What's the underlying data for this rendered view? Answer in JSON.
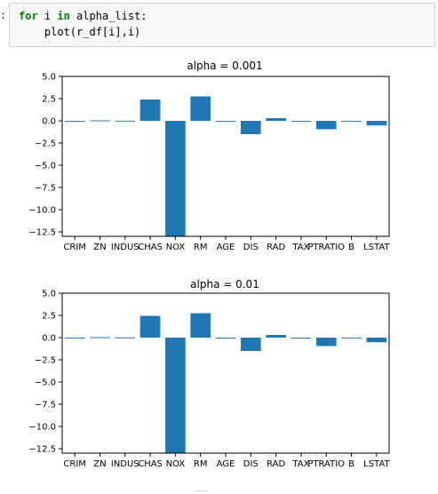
{
  "notebook": {
    "prompt": ":",
    "code": {
      "line1_kw_for": "for",
      "line1_var": " i ",
      "line1_kw_in": "in",
      "line1_rest": " alpha_list:",
      "line2": "    plot(r_df[i],i)"
    }
  },
  "chart_data": [
    {
      "type": "bar",
      "title": "alpha = 0.001",
      "categories": [
        "CRIM",
        "ZN",
        "INDUS",
        "CHAS",
        "NOX",
        "RM",
        "AGE",
        "DIS",
        "RAD",
        "TAX",
        "PTRATIO",
        "B",
        "LSTAT"
      ],
      "values": [
        -0.1,
        0.05,
        0.02,
        2.4,
        -13.5,
        2.75,
        0.0,
        -1.5,
        0.3,
        -0.01,
        -0.95,
        0.01,
        -0.52
      ],
      "xlabel": "",
      "ylabel": "",
      "ylim": [
        -13,
        5
      ],
      "yticks": [
        "5.0",
        "2.5",
        "0.0",
        "−2.5",
        "−5.0",
        "−7.5",
        "−10.0",
        "−12.5"
      ],
      "ytick_values": [
        5,
        2.5,
        0,
        -2.5,
        -5,
        -7.5,
        -10,
        -12.5
      ],
      "bar_color": "#1f77b4",
      "grid": false
    },
    {
      "type": "bar",
      "title": "alpha = 0.01",
      "categories": [
        "CRIM",
        "ZN",
        "INDUS",
        "CHAS",
        "NOX",
        "RM",
        "AGE",
        "DIS",
        "RAD",
        "TAX",
        "PTRATIO",
        "B",
        "LSTAT"
      ],
      "values": [
        -0.1,
        0.05,
        0.02,
        2.45,
        -13.2,
        2.75,
        0.0,
        -1.5,
        0.3,
        -0.01,
        -0.95,
        0.01,
        -0.52
      ],
      "xlabel": "",
      "ylabel": "",
      "ylim": [
        -13,
        5
      ],
      "yticks": [
        "5.0",
        "2.5",
        "0.0",
        "−2.5",
        "−5.0",
        "−7.5",
        "−10.0",
        "−12.5"
      ],
      "ytick_values": [
        5,
        2.5,
        0,
        -2.5,
        -5,
        -7.5,
        -10,
        -12.5
      ],
      "bar_color": "#1f77b4",
      "grid": false
    }
  ]
}
